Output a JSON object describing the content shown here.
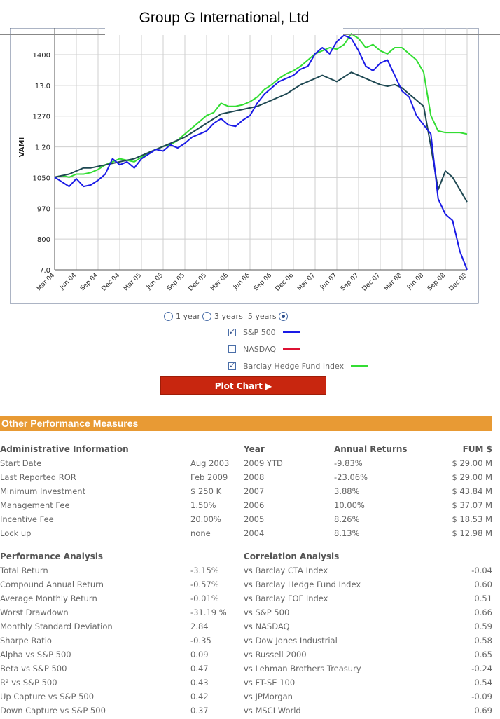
{
  "header": {
    "title": "Group G International, Ltd"
  },
  "chart_data": {
    "type": "line",
    "ylabel": "VAMI",
    "yticks": [
      "1400",
      "13.0",
      "1270",
      "1 20",
      "1050",
      "970",
      "800",
      "7.0"
    ],
    "ylim": [
      700,
      1470
    ],
    "xticks": [
      "Mar 04",
      "Jun 04",
      "Sep 04",
      "Dec 04",
      "Mar 05",
      "Jun 05",
      "Sep 05",
      "Dec 05",
      "Mar 06",
      "Jun 06",
      "Sep 06",
      "Dec 06",
      "Mar 07",
      "Jun 07",
      "Sep 07",
      "Dec 07",
      "Mar 08",
      "Jun 08",
      "Sep 08",
      "Dec 08"
    ],
    "grid": true,
    "series": [
      {
        "name": "S&P 500",
        "color": "#1a1ae6",
        "values": [
          1000,
          985,
          970,
          995,
          970,
          975,
          990,
          1010,
          1060,
          1040,
          1050,
          1030,
          1060,
          1075,
          1090,
          1085,
          1105,
          1095,
          1110,
          1130,
          1140,
          1150,
          1175,
          1190,
          1170,
          1165,
          1185,
          1200,
          1240,
          1270,
          1290,
          1310,
          1320,
          1330,
          1350,
          1360,
          1400,
          1420,
          1400,
          1440,
          1460,
          1450,
          1410,
          1360,
          1345,
          1370,
          1380,
          1330,
          1280,
          1260,
          1200,
          1170,
          1140,
          930,
          880,
          860,
          760,
          700
        ]
      },
      {
        "name": "Barclay Hedge Fund Index",
        "color": "#33dd33",
        "values": [
          1000,
          1005,
          1000,
          1010,
          1010,
          1015,
          1025,
          1040,
          1050,
          1060,
          1055,
          1050,
          1065,
          1080,
          1090,
          1100,
          1105,
          1120,
          1140,
          1160,
          1180,
          1200,
          1210,
          1240,
          1230,
          1230,
          1235,
          1245,
          1260,
          1285,
          1300,
          1320,
          1335,
          1345,
          1360,
          1380,
          1400,
          1410,
          1420,
          1415,
          1430,
          1465,
          1450,
          1420,
          1430,
          1410,
          1400,
          1420,
          1420,
          1400,
          1380,
          1340,
          1200,
          1150,
          1145,
          1145,
          1145,
          1140
        ]
      },
      {
        "name": "Group G International, Ltd",
        "color": "#1e4852",
        "values": [
          1000,
          1005,
          1010,
          1020,
          1030,
          1030,
          1035,
          1040,
          1045,
          1050,
          1055,
          1060,
          1070,
          1080,
          1090,
          1100,
          1110,
          1120,
          1130,
          1145,
          1160,
          1175,
          1190,
          1205,
          1210,
          1215,
          1220,
          1225,
          1230,
          1240,
          1250,
          1260,
          1270,
          1285,
          1300,
          1310,
          1320,
          1330,
          1320,
          1310,
          1325,
          1340,
          1330,
          1320,
          1310,
          1300,
          1295,
          1300,
          1290,
          1270,
          1250,
          1230,
          1100,
          960,
          1020,
          1000,
          960,
          920
        ]
      }
    ]
  },
  "controls": {
    "period_1year": "1 year",
    "period_3years": "3 years",
    "period_5years": "5 years",
    "sp500_label": "S&P 500",
    "sp500_color": "#1a1ae6",
    "nasdaq_label": "NASDAQ",
    "nasdaq_color": "#dd1133",
    "barclay_label": "Barclay Hedge Fund Index",
    "barclay_color": "#33dd33",
    "plot_button": "Plot Chart ▶"
  },
  "section": {
    "title": "Other Performance Measures"
  },
  "admin": {
    "header": "Administrative Information",
    "rows": [
      {
        "label": "Start Date",
        "value": "Aug 2003"
      },
      {
        "label": "Last Reported ROR",
        "value": "Feb 2009"
      },
      {
        "label": "Minimum Investment",
        "value": "$ 250 K"
      },
      {
        "label": "Management Fee",
        "value": "1.50%"
      },
      {
        "label": "Incentive Fee",
        "value": "20.00%"
      },
      {
        "label": "Lock up",
        "value": "none"
      }
    ]
  },
  "returns": {
    "header_year": "Year",
    "header_annual": "Annual Returns",
    "header_fum": "FUM $",
    "rows": [
      {
        "year": "2009 YTD",
        "annual": "-9.83%",
        "fum": "$ 29.00 M"
      },
      {
        "year": "2008",
        "annual": "-23.06%",
        "fum": "$ 29.00 M"
      },
      {
        "year": "2007",
        "annual": "3.88%",
        "fum": "$ 43.84 M"
      },
      {
        "year": "2006",
        "annual": "10.00%",
        "fum": "$ 37.07 M"
      },
      {
        "year": "2005",
        "annual": "8.26%",
        "fum": "$ 18.53 M"
      },
      {
        "year": "2004",
        "annual": "8.13%",
        "fum": "$ 12.98 M"
      }
    ]
  },
  "performance": {
    "header": "Performance Analysis",
    "rows": [
      {
        "label": "Total Return",
        "value": "-3.15%"
      },
      {
        "label": "Compound Annual Return",
        "value": "-0.57%"
      },
      {
        "label": "Average Monthly Return",
        "value": "-0.01%"
      },
      {
        "label": "Worst Drawdown",
        "value": "-31.19 %"
      },
      {
        "label": "Monthly Standard Deviation",
        "value": "2.84"
      },
      {
        "label": "Sharpe Ratio",
        "value": "-0.35"
      },
      {
        "label": "Alpha vs S&P 500",
        "value": "0.09"
      },
      {
        "label": "Beta vs S&P 500",
        "value": "0.47"
      },
      {
        "label": "R² vs S&P 500",
        "value": "0.43"
      },
      {
        "label": "Up Capture vs S&P 500",
        "value": "0.42"
      },
      {
        "label": "Down Capture vs S&P 500",
        "value": "0.37"
      }
    ]
  },
  "correlation": {
    "header": "Correlation Analysis",
    "rows": [
      {
        "label": "vs Barclay CTA Index",
        "value": "-0.04"
      },
      {
        "label": "vs Barclay Hedge Fund Index",
        "value": "0.60"
      },
      {
        "label": "vs Barclay FOF Index",
        "value": "0.51"
      },
      {
        "label": "vs S&P 500",
        "value": "0.66"
      },
      {
        "label": "vs NASDAQ",
        "value": "0.59"
      },
      {
        "label": "vs Dow Jones Industrial",
        "value": "0.58"
      },
      {
        "label": "vs Russell 2000",
        "value": "0.65"
      },
      {
        "label": "vs Lehman Brothers Treasury",
        "value": "-0.24"
      },
      {
        "label": "vs FT-SE 100",
        "value": "0.54"
      },
      {
        "label": "vs JPMorgan",
        "value": "-0.09"
      },
      {
        "label": "vs MSCI World",
        "value": "0.69"
      }
    ]
  }
}
